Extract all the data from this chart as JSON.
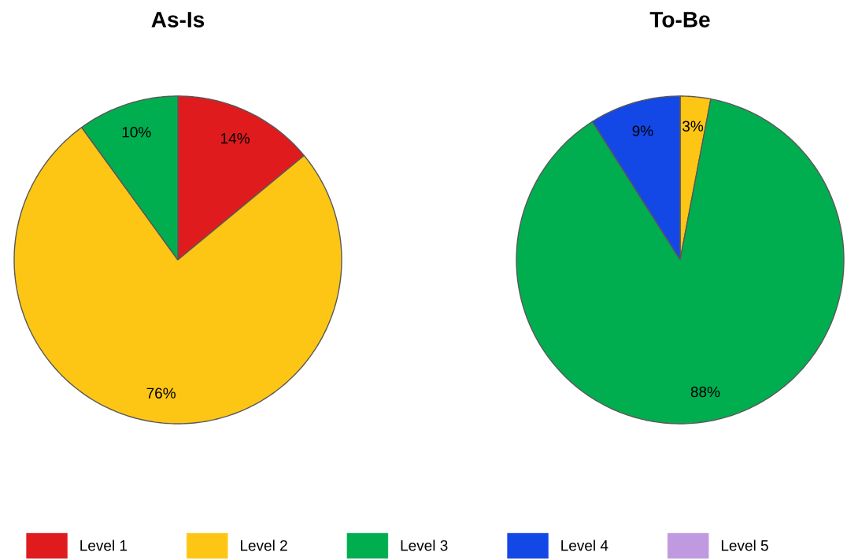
{
  "chart_data": {
    "type": "pie",
    "categories": [
      "Level 1",
      "Level 2",
      "Level 3",
      "Level 4",
      "Level 5"
    ],
    "colors": [
      "#e01b1e",
      "#fec614",
      "#00ae50",
      "#1448e6",
      "#c09ae0"
    ],
    "legend": "bottom",
    "series": [
      {
        "name": "As-Is",
        "values": [
          14,
          76,
          10,
          0,
          0
        ],
        "value_labels": [
          "14%",
          "76%",
          "10%",
          null,
          null
        ]
      },
      {
        "name": "To-Be",
        "values": [
          0,
          3,
          88,
          9,
          0
        ],
        "value_labels": [
          null,
          "3%",
          "88%",
          "9%",
          null
        ]
      }
    ]
  }
}
